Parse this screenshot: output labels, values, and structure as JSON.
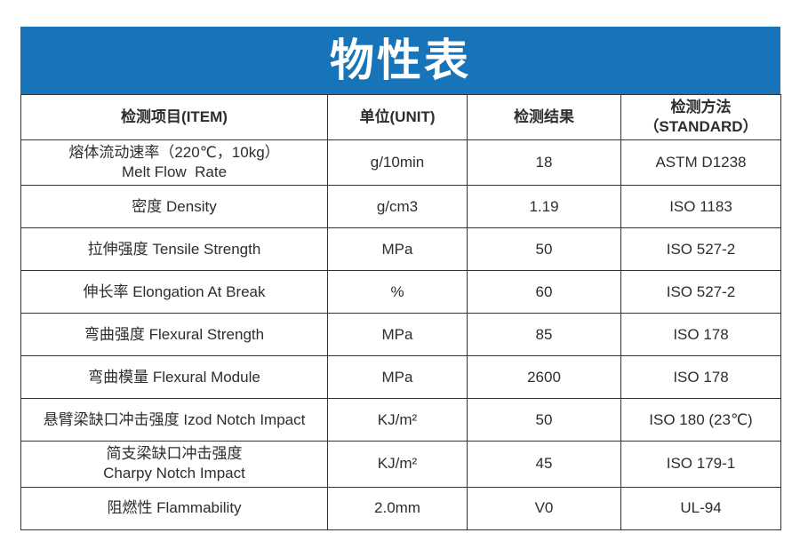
{
  "banner": {
    "title": "物性表",
    "background": "#1874b9",
    "text_color": "#ffffff"
  },
  "table": {
    "border_color": "#333333",
    "headers": [
      {
        "id": "item",
        "lines": [
          "检测项目(ITEM)"
        ]
      },
      {
        "id": "unit",
        "lines": [
          "单位(UNIT)"
        ]
      },
      {
        "id": "result",
        "lines": [
          "检测结果"
        ]
      },
      {
        "id": "standard",
        "lines": [
          "检测方法",
          "（STANDARD）"
        ]
      }
    ],
    "rows": [
      {
        "item_lines": [
          "熔体流动速率（220℃，10kg）",
          "Melt Flow  Rate"
        ],
        "unit": "g/10min",
        "result": "18",
        "standard": "ASTM D1238"
      },
      {
        "item_lines": [
          "密度 Density"
        ],
        "unit": "g/cm3",
        "result": "1.19",
        "standard": "ISO 1183"
      },
      {
        "item_lines": [
          "拉伸强度 Tensile Strength"
        ],
        "unit": "MPa",
        "result": "50",
        "standard": "ISO 527-2"
      },
      {
        "item_lines": [
          "伸长率 Elongation At Break"
        ],
        "unit": "%",
        "result": "60",
        "standard": "ISO 527-2"
      },
      {
        "item_lines": [
          "弯曲强度 Flexural Strength"
        ],
        "unit": "MPa",
        "result": "85",
        "standard": "ISO 178"
      },
      {
        "item_lines": [
          "弯曲模量 Flexural Module"
        ],
        "unit": "MPa",
        "result": "2600",
        "standard": "ISO 178"
      },
      {
        "item_lines": [
          "悬臂梁缺口冲击强度 Izod Notch Impact"
        ],
        "unit": "KJ/m²",
        "result": "50",
        "standard": "ISO 180 (23℃)"
      },
      {
        "item_lines": [
          "简支梁缺口冲击强度",
          "Charpy Notch Impact"
        ],
        "unit": "KJ/m²",
        "result": "45",
        "standard": "ISO 179-1"
      },
      {
        "item_lines": [
          "阻燃性 Flammability"
        ],
        "unit": "2.0mm",
        "result": "V0",
        "standard": "UL-94"
      }
    ]
  }
}
